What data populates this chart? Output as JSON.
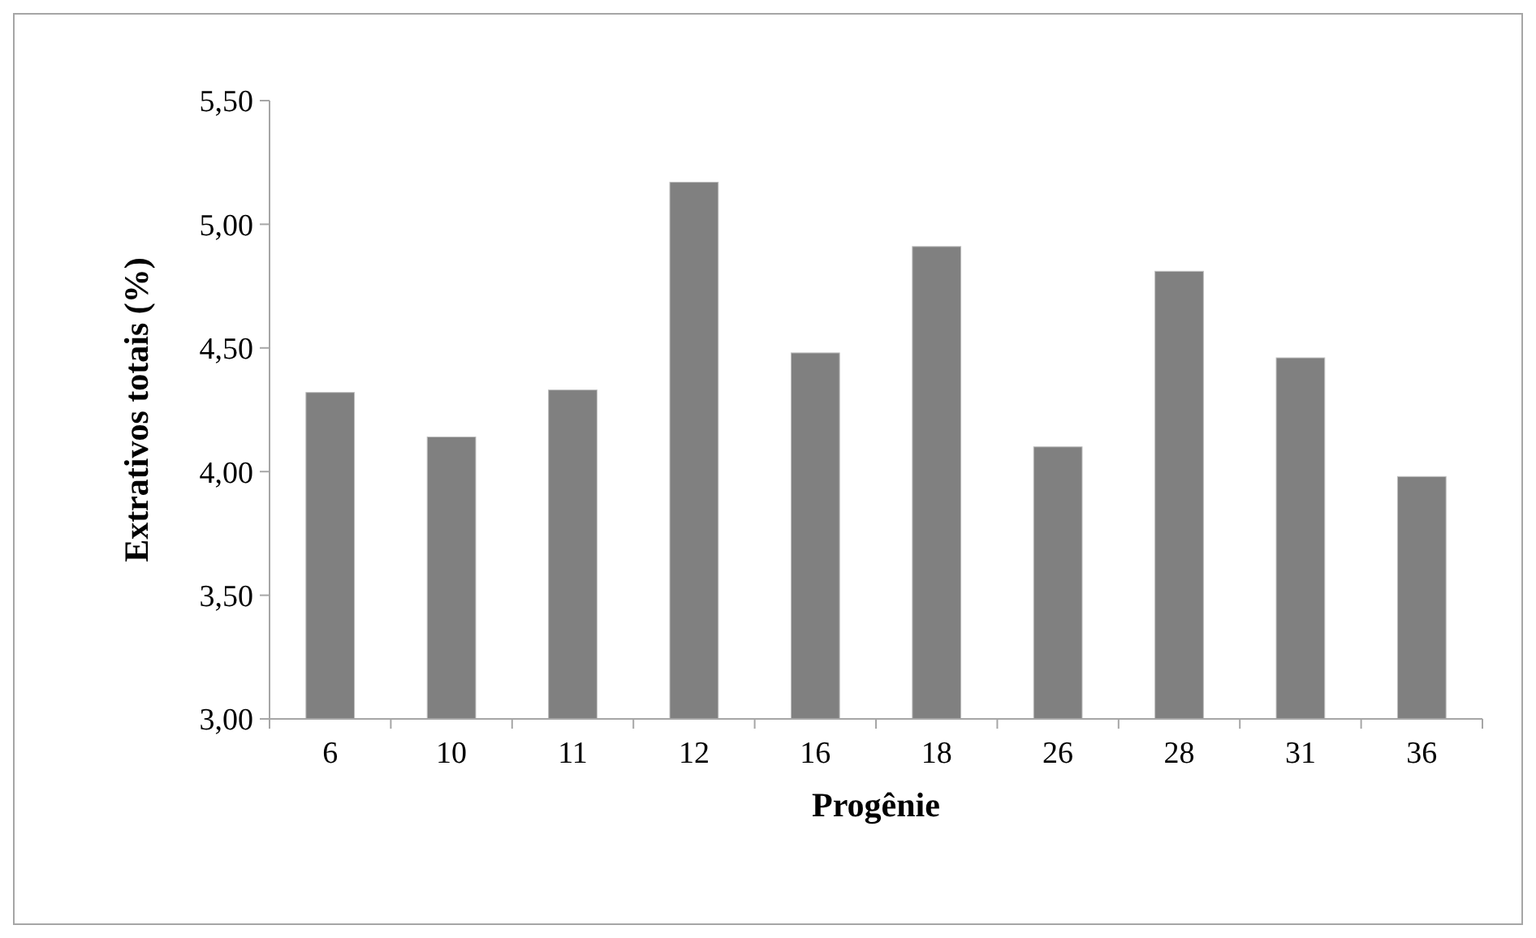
{
  "chart_data": {
    "type": "bar",
    "xlabel": "Progênie",
    "ylabel": "Extrativos totais (%)",
    "categories": [
      "6",
      "10",
      "11",
      "12",
      "16",
      "18",
      "26",
      "28",
      "31",
      "36"
    ],
    "values": [
      4.32,
      4.14,
      4.33,
      5.17,
      4.48,
      4.91,
      4.1,
      4.81,
      4.46,
      3.98
    ],
    "color": "#808080",
    "ylim": [
      3,
      5.5
    ],
    "yticks": [
      {
        "value": 3,
        "label": "3,00"
      },
      {
        "value": 3.5,
        "label": "3,50"
      },
      {
        "value": 4,
        "label": "4,00"
      },
      {
        "value": 4.5,
        "label": "4,50"
      },
      {
        "value": 5,
        "label": "5,00"
      },
      {
        "value": 5.5,
        "label": "5,50"
      }
    ],
    "grid": false
  }
}
